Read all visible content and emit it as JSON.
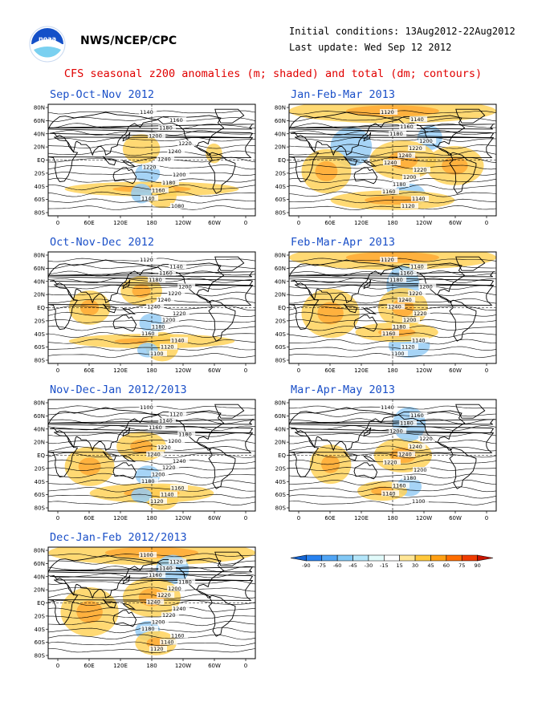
{
  "header": {
    "agency": "NWS/NCEP/CPC",
    "initial_conditions": "Initial conditions: 13Aug2012-22Aug2012",
    "last_update": "Last update: Wed Sep 12 2012"
  },
  "figure_title": "CFS seasonal z200 anomalies (m; shaded) and total (dm; contours)",
  "axes": {
    "lon_ticks": [
      "0",
      "60E",
      "120E",
      "180",
      "120W",
      "60W",
      "0"
    ],
    "lat_ticks": [
      "80N",
      "60N",
      "40N",
      "20N",
      "EQ",
      "20S",
      "40S",
      "60S",
      "80S"
    ]
  },
  "colorbar": {
    "values": [
      "-90",
      "-75",
      "-60",
      "-45",
      "-30",
      "-15",
      "15",
      "30",
      "45",
      "60",
      "75",
      "90"
    ],
    "colors": [
      "#1464d2",
      "#2882f0",
      "#50a5f5",
      "#82c8f5",
      "#b4e6fa",
      "#e1fafa",
      "#ffffff",
      "#ffe696",
      "#ffc83c",
      "#ffa014",
      "#ff6e00",
      "#f03c00",
      "#c81400"
    ]
  },
  "panels": [
    {
      "title": "Sep-Oct-Nov 2012",
      "contour_labels": [
        "1140",
        "1160",
        "1180",
        "1200",
        "1220",
        "1240",
        "1240",
        "1220",
        "1200",
        "1180",
        "1160",
        "1140",
        "1080"
      ],
      "anomalies": [
        [
          "pos",
          0.45,
          0.4,
          0.09,
          0.06
        ],
        [
          "neg",
          0.48,
          0.62,
          0.06,
          0.04
        ],
        [
          "pos",
          0.5,
          0.76,
          0.42,
          0.03
        ],
        [
          "pos",
          0.55,
          0.82,
          0.07,
          0.05
        ],
        [
          "neg",
          0.45,
          0.8,
          0.05,
          0.04
        ],
        [
          "pos",
          0.8,
          0.44,
          0.04,
          0.04
        ]
      ]
    },
    {
      "title": "Jan-Feb-Mar 2013",
      "contour_labels": [
        "1120",
        "1140",
        "1160",
        "1180",
        "1200",
        "1220",
        "1240",
        "1240",
        "1220",
        "1200",
        "1180",
        "1160",
        "1140",
        "1120"
      ],
      "anomalies": [
        [
          "pos",
          0.5,
          0.06,
          0.5,
          0.05
        ],
        [
          "neg",
          0.3,
          0.38,
          0.1,
          0.08
        ],
        [
          "neg",
          0.68,
          0.3,
          0.06,
          0.05
        ],
        [
          "pos",
          0.55,
          0.5,
          0.16,
          0.08
        ],
        [
          "pos",
          0.18,
          0.6,
          0.12,
          0.09
        ],
        [
          "pos",
          0.8,
          0.55,
          0.14,
          0.08
        ],
        [
          "neg",
          0.58,
          0.82,
          0.08,
          0.05
        ],
        [
          "pos",
          0.5,
          0.86,
          0.3,
          0.04
        ]
      ]
    },
    {
      "title": "Oct-Nov-Dec 2012",
      "contour_labels": [
        "1120",
        "1140",
        "1160",
        "1180",
        "1200",
        "1220",
        "1240",
        "1240",
        "1220",
        "1200",
        "1180",
        "1160",
        "1140",
        "1120",
        "1100"
      ],
      "anomalies": [
        [
          "pos",
          0.45,
          0.35,
          0.1,
          0.06
        ],
        [
          "neg",
          0.5,
          0.64,
          0.06,
          0.04
        ],
        [
          "pos",
          0.5,
          0.8,
          0.4,
          0.03
        ],
        [
          "pos",
          0.55,
          0.85,
          0.08,
          0.06
        ],
        [
          "neg",
          0.48,
          0.88,
          0.05,
          0.03
        ],
        [
          "pos",
          0.2,
          0.5,
          0.1,
          0.07
        ]
      ]
    },
    {
      "title": "Feb-Mar-Apr 2013",
      "contour_labels": [
        "1120",
        "1140",
        "1160",
        "1180",
        "1200",
        "1220",
        "1240",
        "1240",
        "1220",
        "1200",
        "1180",
        "1160",
        "1140",
        "1120",
        "1100"
      ],
      "anomalies": [
        [
          "pos",
          0.5,
          0.05,
          0.5,
          0.05
        ],
        [
          "neg",
          0.55,
          0.3,
          0.08,
          0.08
        ],
        [
          "pos",
          0.55,
          0.5,
          0.12,
          0.08
        ],
        [
          "pos",
          0.2,
          0.55,
          0.14,
          0.1
        ],
        [
          "neg",
          0.58,
          0.84,
          0.1,
          0.05
        ],
        [
          "pos",
          0.52,
          0.72,
          0.2,
          0.04
        ]
      ]
    },
    {
      "title": "Nov-Dec-Jan 2012/2013",
      "contour_labels": [
        "1100",
        "1120",
        "1140",
        "1160",
        "1180",
        "1200",
        "1220",
        "1240",
        "1240",
        "1220",
        "1200",
        "1180",
        "1160",
        "1140",
        "1120"
      ],
      "anomalies": [
        [
          "pos",
          0.45,
          0.42,
          0.12,
          0.06
        ],
        [
          "neg",
          0.48,
          0.68,
          0.06,
          0.04
        ],
        [
          "pos",
          0.5,
          0.84,
          0.3,
          0.04
        ],
        [
          "pos",
          0.55,
          0.88,
          0.08,
          0.05
        ],
        [
          "neg",
          0.45,
          0.86,
          0.05,
          0.03
        ],
        [
          "pos",
          0.2,
          0.6,
          0.12,
          0.08
        ]
      ]
    },
    {
      "title": "Mar-Apr-May 2013",
      "contour_labels": [
        "1140",
        "1160",
        "1180",
        "1200",
        "1220",
        "1240",
        "1240",
        "1220",
        "1200",
        "1180",
        "1160",
        "1140",
        "1100"
      ],
      "anomalies": [
        [
          "pos",
          0.55,
          0.5,
          0.14,
          0.07
        ],
        [
          "neg",
          0.58,
          0.22,
          0.08,
          0.07
        ],
        [
          "pos",
          0.2,
          0.58,
          0.1,
          0.08
        ],
        [
          "neg",
          0.58,
          0.78,
          0.06,
          0.04
        ],
        [
          "pos",
          0.45,
          0.82,
          0.12,
          0.04
        ]
      ]
    },
    {
      "title": "Dec-Jan-Feb 2012/2013",
      "contour_labels": [
        "1100",
        "1120",
        "1140",
        "1160",
        "1180",
        "1200",
        "1220",
        "1240",
        "1240",
        "1220",
        "1200",
        "1180",
        "1160",
        "1140",
        "1120"
      ],
      "anomalies": [
        [
          "pos",
          0.5,
          0.05,
          0.5,
          0.05
        ],
        [
          "neg",
          0.6,
          0.2,
          0.08,
          0.06
        ],
        [
          "pos",
          0.5,
          0.45,
          0.14,
          0.08
        ],
        [
          "pos",
          0.2,
          0.58,
          0.14,
          0.1
        ],
        [
          "neg",
          0.48,
          0.75,
          0.06,
          0.04
        ],
        [
          "pos",
          0.52,
          0.86,
          0.1,
          0.05
        ]
      ]
    }
  ]
}
